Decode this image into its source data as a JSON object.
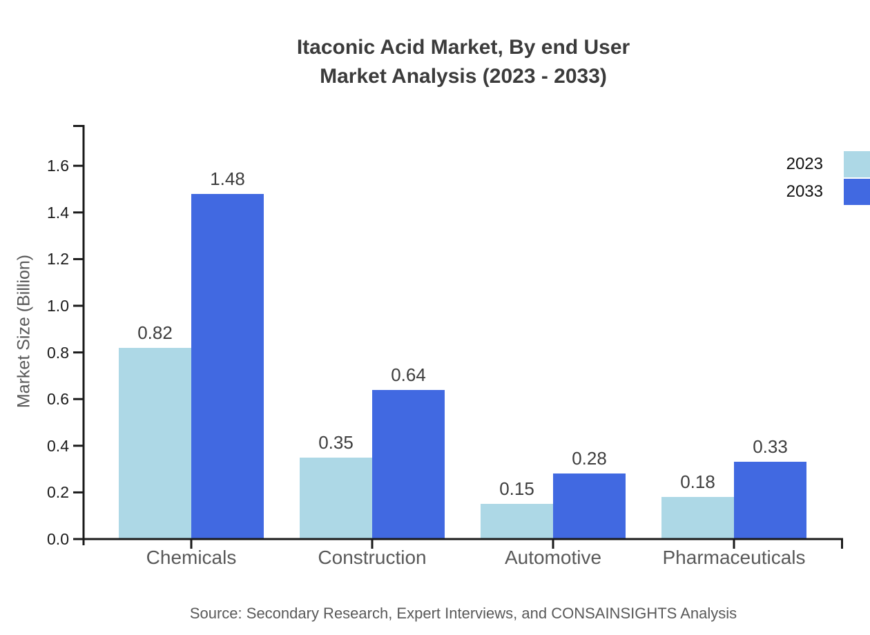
{
  "title": {
    "line1": "Itaconic Acid Market, By end User",
    "line2": "Market Analysis (2023 - 2033)"
  },
  "source": "Source: Secondary Research, Expert Interviews, and CONSAINSIGHTS Analysis",
  "colors": {
    "series_2023": "#ADD8E6",
    "series_2033": "#4169E1",
    "axis": "#1a1a1a",
    "muted_text": "#595959",
    "value_text": "#3d3d3d",
    "title_text": "#3b3b3b"
  },
  "chart_data": {
    "type": "bar",
    "title": "Itaconic Acid Market, By end User Market Analysis (2023 - 2033)",
    "categories": [
      "Chemicals",
      "Construction",
      "Automotive",
      "Pharmaceuticals"
    ],
    "series": [
      {
        "name": "2023",
        "color": "#ADD8E6",
        "values": [
          0.82,
          0.35,
          0.15,
          0.18
        ]
      },
      {
        "name": "2033",
        "color": "#4169E1",
        "values": [
          1.48,
          0.64,
          0.28,
          0.33
        ]
      }
    ],
    "xlabel": "",
    "ylabel": "Market Size (Billion)",
    "ylim": [
      0,
      1.78
    ],
    "yticks": [
      0.0,
      0.2,
      0.4,
      0.6,
      0.8,
      1.0,
      1.2,
      1.4,
      1.6
    ],
    "grid": false,
    "legend_position": "top-right",
    "value_labels": true
  }
}
